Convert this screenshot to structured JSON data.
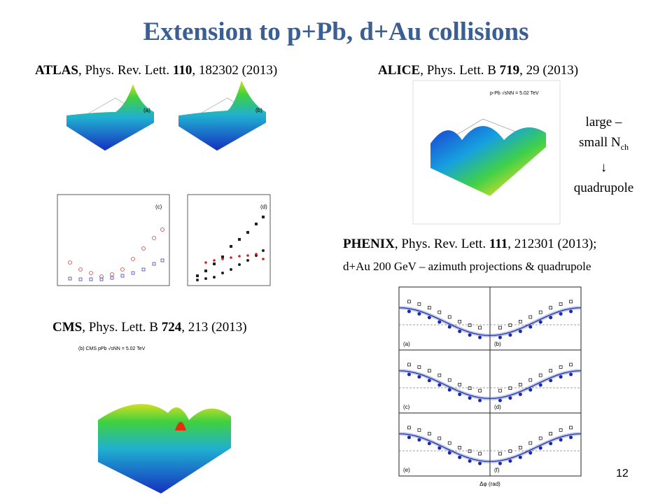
{
  "title": "Extension to p+Pb, d+Au collisions",
  "atlas": {
    "name": "ATLAS",
    "journal": ", Phys. Rev. Lett. ",
    "volume": "110",
    "rest": ", 182302 (2013)"
  },
  "alice": {
    "name": "ALICE",
    "journal": ", Phys. Lett. B ",
    "volume": "719",
    "rest": ", 29 (2013)"
  },
  "note": {
    "line1": "large –",
    "line2": "small N",
    "sub": "ch",
    "arrow": "↓",
    "line4": "quadrupole"
  },
  "phenix": {
    "name": "PHENIX",
    "journal": ", Phys. Rev. Lett. ",
    "volume": "111",
    "rest": ", 212301 (2013);",
    "line2": "d+Au 200 GeV – azimuth projections & quadrupole"
  },
  "cms": {
    "name": "CMS",
    "journal": ", Phys. Lett. B ",
    "volume": "724",
    "rest": ", 213 (2013)"
  },
  "figures": {
    "atlas_panels": [
      "(a)",
      "(b)",
      "(c)",
      "(d)"
    ],
    "alice_label": "p-Pb √sNN = 5.02 TeV",
    "cms_label": "(b) CMS pPb √sNN = 5.02 TeV",
    "phenix_panels": [
      "(a)",
      "(b)",
      "(c)",
      "(d)",
      "(e)",
      "(f)"
    ],
    "phenix_xlabel": "Δφ (rad)"
  },
  "page_number": "12"
}
